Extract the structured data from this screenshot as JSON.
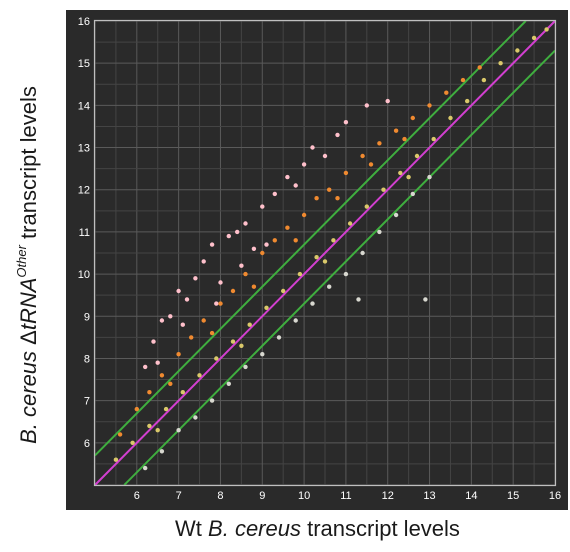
{
  "chart_data": {
    "type": "scatter",
    "xlabel": {
      "prefix": "Wt ",
      "italic": "B. cereus",
      "suffix": " transcript levels"
    },
    "ylabel": {
      "italic": "B. cereus ",
      "delta": "Δ",
      "italic2": "tRNA",
      "sup": "Other",
      "suffix": " transcript levels"
    },
    "xlim": [
      5,
      16
    ],
    "ylim": [
      5,
      16
    ],
    "x_ticks": [
      "6",
      "7",
      "8",
      "9",
      "10",
      "11",
      "12",
      "13",
      "14",
      "15",
      "16"
    ],
    "y_ticks": [
      "6",
      "7",
      "8",
      "9",
      "10",
      "11",
      "12",
      "13",
      "14",
      "15",
      "16"
    ],
    "grid": true,
    "background": "#2a2a2a",
    "reference_lines": [
      {
        "slope": 1,
        "intercept": 0,
        "color": "#d23fd0"
      },
      {
        "slope": 1,
        "intercept": 0.7,
        "color": "#3fae3f"
      },
      {
        "slope": 1,
        "intercept": -0.7,
        "color": "#3fae3f"
      }
    ],
    "series": [
      {
        "color": "#ffc0cb",
        "points": [
          [
            6.2,
            7.8
          ],
          [
            6.4,
            8.4
          ],
          [
            6.6,
            8.9
          ],
          [
            6.8,
            9.0
          ],
          [
            7.0,
            9.6
          ],
          [
            7.2,
            9.4
          ],
          [
            7.4,
            9.9
          ],
          [
            7.6,
            10.3
          ],
          [
            7.8,
            10.7
          ],
          [
            8.0,
            9.8
          ],
          [
            8.2,
            10.9
          ],
          [
            8.4,
            11.0
          ],
          [
            8.6,
            11.2
          ],
          [
            8.8,
            10.6
          ],
          [
            9.0,
            11.6
          ],
          [
            9.3,
            11.9
          ],
          [
            9.6,
            12.3
          ],
          [
            9.8,
            12.1
          ],
          [
            10.0,
            12.6
          ],
          [
            10.2,
            13.0
          ],
          [
            10.5,
            12.8
          ],
          [
            10.8,
            13.3
          ],
          [
            11.0,
            13.6
          ],
          [
            11.5,
            14.0
          ],
          [
            12.0,
            14.1
          ],
          [
            6.5,
            7.9
          ],
          [
            7.1,
            8.8
          ],
          [
            7.9,
            9.3
          ],
          [
            8.5,
            10.2
          ],
          [
            9.1,
            10.7
          ]
        ]
      },
      {
        "color": "#f08a30",
        "points": [
          [
            5.6,
            6.2
          ],
          [
            6.0,
            6.8
          ],
          [
            6.3,
            7.2
          ],
          [
            6.6,
            7.6
          ],
          [
            7.0,
            8.1
          ],
          [
            7.3,
            8.5
          ],
          [
            7.6,
            8.9
          ],
          [
            8.0,
            9.3
          ],
          [
            8.3,
            9.6
          ],
          [
            8.6,
            10.0
          ],
          [
            9.0,
            10.5
          ],
          [
            9.3,
            10.8
          ],
          [
            9.6,
            11.1
          ],
          [
            10.0,
            11.4
          ],
          [
            10.3,
            11.8
          ],
          [
            10.6,
            12.0
          ],
          [
            11.0,
            12.4
          ],
          [
            11.4,
            12.8
          ],
          [
            11.8,
            13.1
          ],
          [
            12.2,
            13.4
          ],
          [
            12.6,
            13.7
          ],
          [
            13.0,
            14.0
          ],
          [
            13.4,
            14.3
          ],
          [
            13.8,
            14.6
          ],
          [
            14.2,
            14.9
          ],
          [
            6.8,
            7.4
          ],
          [
            7.8,
            8.6
          ],
          [
            8.8,
            9.7
          ],
          [
            9.8,
            10.8
          ],
          [
            10.8,
            11.8
          ],
          [
            11.6,
            12.6
          ],
          [
            12.4,
            13.2
          ]
        ]
      },
      {
        "color": "#d9c86a",
        "points": [
          [
            5.5,
            5.6
          ],
          [
            5.9,
            6.0
          ],
          [
            6.3,
            6.4
          ],
          [
            6.7,
            6.8
          ],
          [
            7.1,
            7.2
          ],
          [
            7.5,
            7.6
          ],
          [
            7.9,
            8.0
          ],
          [
            8.3,
            8.4
          ],
          [
            8.7,
            8.8
          ],
          [
            9.1,
            9.2
          ],
          [
            9.5,
            9.6
          ],
          [
            9.9,
            10.0
          ],
          [
            10.3,
            10.4
          ],
          [
            10.7,
            10.8
          ],
          [
            11.1,
            11.2
          ],
          [
            11.5,
            11.6
          ],
          [
            11.9,
            12.0
          ],
          [
            12.3,
            12.4
          ],
          [
            12.7,
            12.8
          ],
          [
            13.1,
            13.2
          ],
          [
            13.5,
            13.7
          ],
          [
            13.9,
            14.1
          ],
          [
            14.3,
            14.6
          ],
          [
            14.7,
            15.0
          ],
          [
            15.1,
            15.3
          ],
          [
            15.5,
            15.6
          ],
          [
            15.8,
            15.8
          ],
          [
            6.5,
            6.3
          ],
          [
            8.5,
            8.3
          ],
          [
            10.5,
            10.3
          ],
          [
            12.5,
            12.3
          ]
        ]
      },
      {
        "color": "#d8d8d0",
        "points": [
          [
            6.2,
            5.4
          ],
          [
            6.6,
            5.8
          ],
          [
            7.0,
            6.3
          ],
          [
            7.4,
            6.6
          ],
          [
            7.8,
            7.0
          ],
          [
            8.2,
            7.4
          ],
          [
            8.6,
            7.8
          ],
          [
            9.0,
            8.1
          ],
          [
            9.4,
            8.5
          ],
          [
            9.8,
            8.9
          ],
          [
            10.2,
            9.3
          ],
          [
            10.6,
            9.7
          ],
          [
            11.0,
            10.0
          ],
          [
            11.4,
            10.5
          ],
          [
            11.8,
            11.0
          ],
          [
            12.2,
            11.4
          ],
          [
            12.6,
            11.9
          ],
          [
            13.0,
            12.3
          ],
          [
            11.3,
            9.4
          ],
          [
            12.9,
            9.4
          ]
        ]
      }
    ]
  }
}
